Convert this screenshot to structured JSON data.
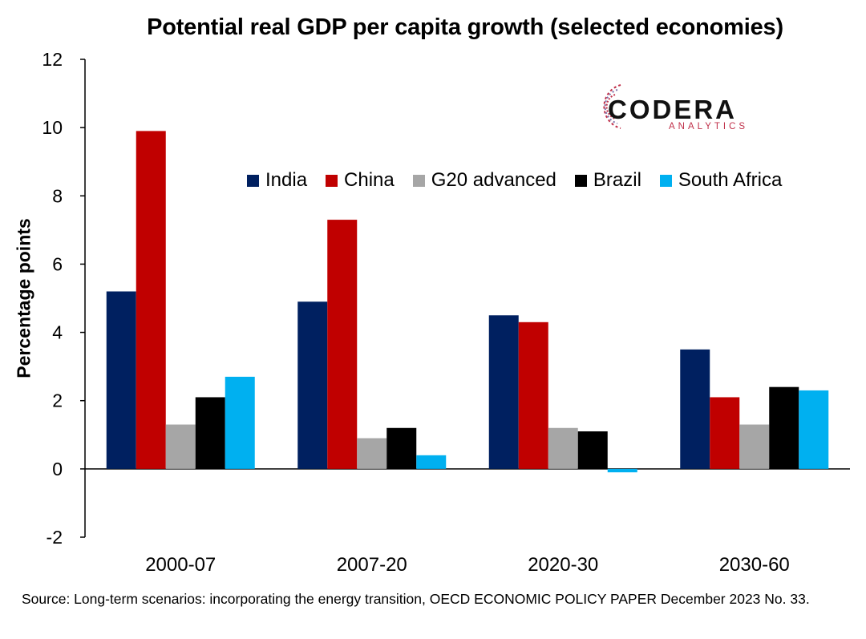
{
  "chart_data": {
    "type": "bar",
    "title": "Potential real GDP per capita growth (selected economies)",
    "ylabel": "Percentage points",
    "xlabel": "",
    "ylim": [
      -2,
      12
    ],
    "yticks": [
      -2,
      0,
      2,
      4,
      6,
      8,
      10,
      12
    ],
    "categories": [
      "2000-07",
      "2007-20",
      "2020-30",
      "2030-60"
    ],
    "series": [
      {
        "name": "India",
        "color": "#002060",
        "values": [
          5.2,
          4.9,
          4.5,
          3.5
        ]
      },
      {
        "name": "China",
        "color": "#c00000",
        "values": [
          9.9,
          7.3,
          4.3,
          2.1
        ]
      },
      {
        "name": "G20 advanced",
        "color": "#a6a6a6",
        "values": [
          1.3,
          0.9,
          1.2,
          1.3
        ]
      },
      {
        "name": "Brazil",
        "color": "#000000",
        "values": [
          2.1,
          1.2,
          1.1,
          2.4
        ]
      },
      {
        "name": "South Africa",
        "color": "#00b0f0",
        "values": [
          2.7,
          0.4,
          -0.1,
          2.3
        ]
      }
    ],
    "grid": false,
    "legend_position": "top-right"
  },
  "logo": {
    "name": "CODERA",
    "sub": "ANALYTICS"
  },
  "source": "Source: Long-term scenarios: incorporating the energy transition, OECD ECONOMIC POLICY PAPER December 2023 No. 33."
}
